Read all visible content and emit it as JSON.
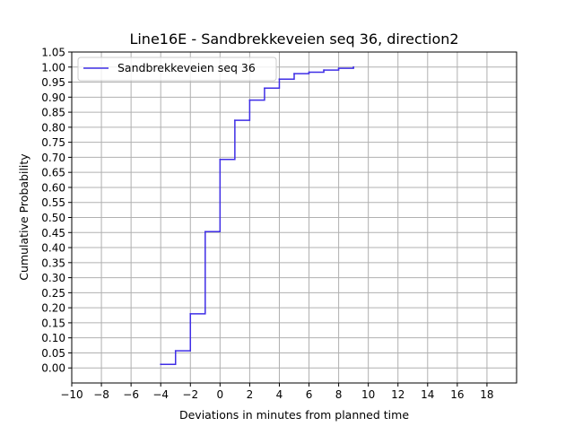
{
  "chart_data": {
    "type": "line",
    "title": "Line16E - Sandbrekkeveien seq 36, direction2",
    "xlabel": "Deviations in minutes from planned time",
    "ylabel": "Cumulative Probability",
    "xlim": [
      -10,
      20
    ],
    "ylim": [
      -0.05,
      1.05
    ],
    "x_ticks": [
      -10,
      -8,
      -6,
      -4,
      -2,
      0,
      2,
      4,
      6,
      8,
      10,
      12,
      14,
      16,
      18
    ],
    "x_tick_labels": [
      "−10",
      "−8",
      "−6",
      "−4",
      "−2",
      "0",
      "2",
      "4",
      "6",
      "8",
      "10",
      "12",
      "14",
      "16",
      "18"
    ],
    "y_ticks": [
      0.0,
      0.05,
      0.1,
      0.15,
      0.2,
      0.25,
      0.3,
      0.35,
      0.4,
      0.45,
      0.5,
      0.55,
      0.6,
      0.65,
      0.7,
      0.75,
      0.8,
      0.85,
      0.9,
      0.95,
      1.0,
      1.05
    ],
    "y_tick_labels": [
      "0.00",
      "0.05",
      "0.10",
      "0.15",
      "0.20",
      "0.25",
      "0.30",
      "0.35",
      "0.40",
      "0.45",
      "0.50",
      "0.55",
      "0.60",
      "0.65",
      "0.70",
      "0.75",
      "0.80",
      "0.85",
      "0.90",
      "0.95",
      "1.00",
      "1.05"
    ],
    "grid": true,
    "step": "post",
    "legend_position": "top-left",
    "series": [
      {
        "name": "Sandbrekkeveien seq 36",
        "color": "#3f2ee6",
        "x": [
          -4,
          -3,
          -2,
          -1,
          0,
          1,
          2,
          3,
          4,
          5,
          6,
          7,
          8,
          9
        ],
        "y": [
          0.012,
          0.057,
          0.18,
          0.453,
          0.693,
          0.823,
          0.89,
          0.93,
          0.96,
          0.978,
          0.983,
          0.99,
          0.996,
          1.0
        ]
      }
    ]
  }
}
